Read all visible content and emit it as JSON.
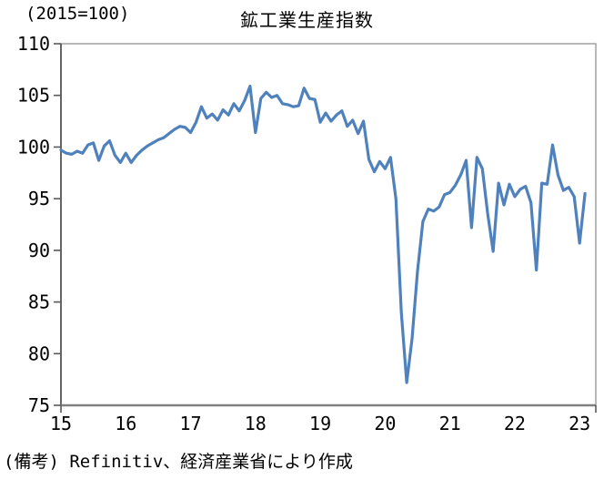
{
  "header": {
    "unit_label": "(2015=100)",
    "title": "鉱工業生産指数"
  },
  "footnote": "(備考) Refinitiv、経済産業省により作成",
  "colors": {
    "line": "#4F81BD",
    "border": "#9A9A9A",
    "axis": "#808080",
    "tick": "#595959",
    "text": "#000000",
    "background": "#FFFFFF"
  },
  "chart_data": {
    "type": "line",
    "title": "鉱工業生産指数",
    "unit_note": "(2015=100)",
    "source_note": "(備考) Refinitiv、経済産業省により作成",
    "grid": false,
    "legend": false,
    "x_axis": {
      "tick_labels": [
        "15",
        "16",
        "17",
        "18",
        "19",
        "20",
        "21",
        "22",
        "23"
      ],
      "range_years": [
        15,
        23.25
      ]
    },
    "y_axis": {
      "ticks": [
        75,
        80,
        85,
        90,
        95,
        100,
        105,
        110
      ],
      "range": [
        75,
        110
      ]
    },
    "series": [
      {
        "name": "鉱工業生産指数",
        "frequency": "monthly",
        "start": "2015-01",
        "end": "2023-02",
        "color": "#4F81BD",
        "values": [
          99.7,
          99.4,
          99.3,
          99.6,
          99.4,
          100.2,
          100.4,
          98.7,
          100.1,
          100.6,
          99.2,
          98.5,
          99.4,
          98.5,
          99.2,
          99.7,
          100.1,
          100.4,
          100.7,
          100.9,
          101.3,
          101.7,
          102.0,
          101.9,
          101.4,
          102.4,
          103.9,
          102.8,
          103.2,
          102.6,
          103.6,
          103.1,
          104.2,
          103.5,
          104.5,
          105.9,
          101.4,
          104.7,
          105.3,
          104.8,
          105.0,
          104.2,
          104.1,
          103.9,
          104.0,
          105.7,
          104.7,
          104.6,
          102.4,
          103.3,
          102.5,
          103.1,
          103.5,
          102.0,
          102.6,
          101.3,
          102.5,
          98.8,
          97.6,
          98.6,
          97.9,
          99.0,
          95.0,
          84.0,
          77.2,
          81.5,
          88.0,
          92.8,
          94.0,
          93.8,
          94.2,
          95.4,
          95.6,
          96.3,
          97.3,
          98.7,
          92.2,
          99.0,
          97.9,
          93.5,
          89.9,
          96.5,
          94.4,
          96.4,
          95.2,
          95.9,
          96.2,
          94.6,
          88.1,
          96.5,
          96.4,
          100.2,
          97.3,
          95.8,
          96.1,
          95.2,
          90.7,
          95.5
        ]
      }
    ]
  }
}
